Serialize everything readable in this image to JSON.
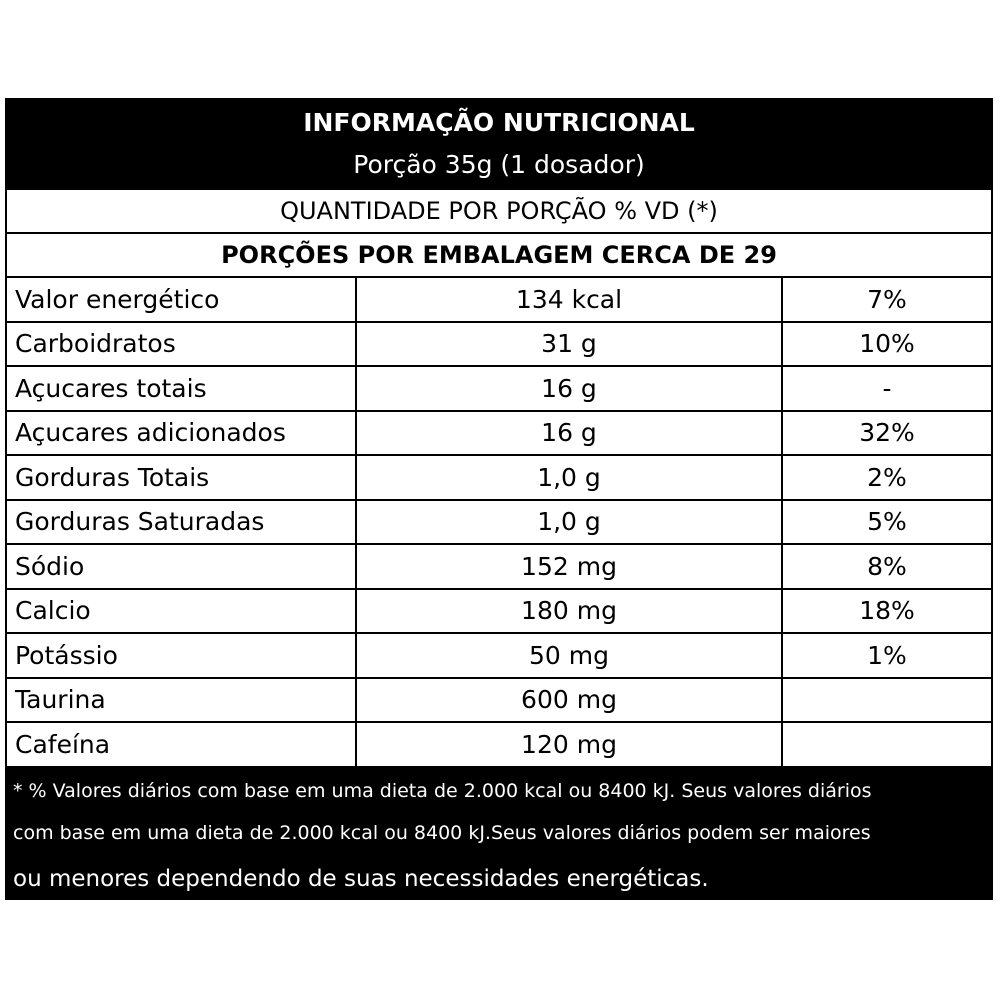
{
  "header": {
    "title": "INFORMAÇÃO NUTRICIONAL",
    "serving": "Porção 35g (1 dosador)"
  },
  "quantity_label": "QUANTIDADE POR PORÇÃO % VD (*)",
  "portions_label": "PORÇÕES POR EMBALAGEM CERCA DE 29",
  "rows": [
    {
      "name": "Valor energético",
      "amount": "134 kcal",
      "vd": "7%"
    },
    {
      "name": "Carboidratos",
      "amount": "31 g",
      "vd": "10%"
    },
    {
      "name": "Açucares totais",
      "amount": "16 g",
      "vd": "-"
    },
    {
      "name": "Açucares adicionados",
      "amount": "16 g",
      "vd": "32%"
    },
    {
      "name": "Gorduras Totais",
      "amount": "1,0 g",
      "vd": "2%"
    },
    {
      "name": "Gorduras Saturadas",
      "amount": "1,0 g",
      "vd": "5%"
    },
    {
      "name": "Sódio",
      "amount": "152 mg",
      "vd": "8%"
    },
    {
      "name": "Calcio",
      "amount": "180 mg",
      "vd": "18%"
    },
    {
      "name": "Potássio",
      "amount": "50 mg",
      "vd": "1%"
    },
    {
      "name": "Taurina",
      "amount": "600 mg",
      "vd": ""
    },
    {
      "name": "Cafeína",
      "amount": "120 mg",
      "vd": ""
    }
  ],
  "footer": {
    "line1": "* % Valores diários com base em uma dieta de 2.000 kcal ou 8400 kJ. Seus valores diários",
    "line2": "com base em uma dieta de 2.000 kcal ou 8400 kJ.Seus valores diários podem ser maiores",
    "line3": "ou menores dependendo de suas necessidades energéticas."
  }
}
